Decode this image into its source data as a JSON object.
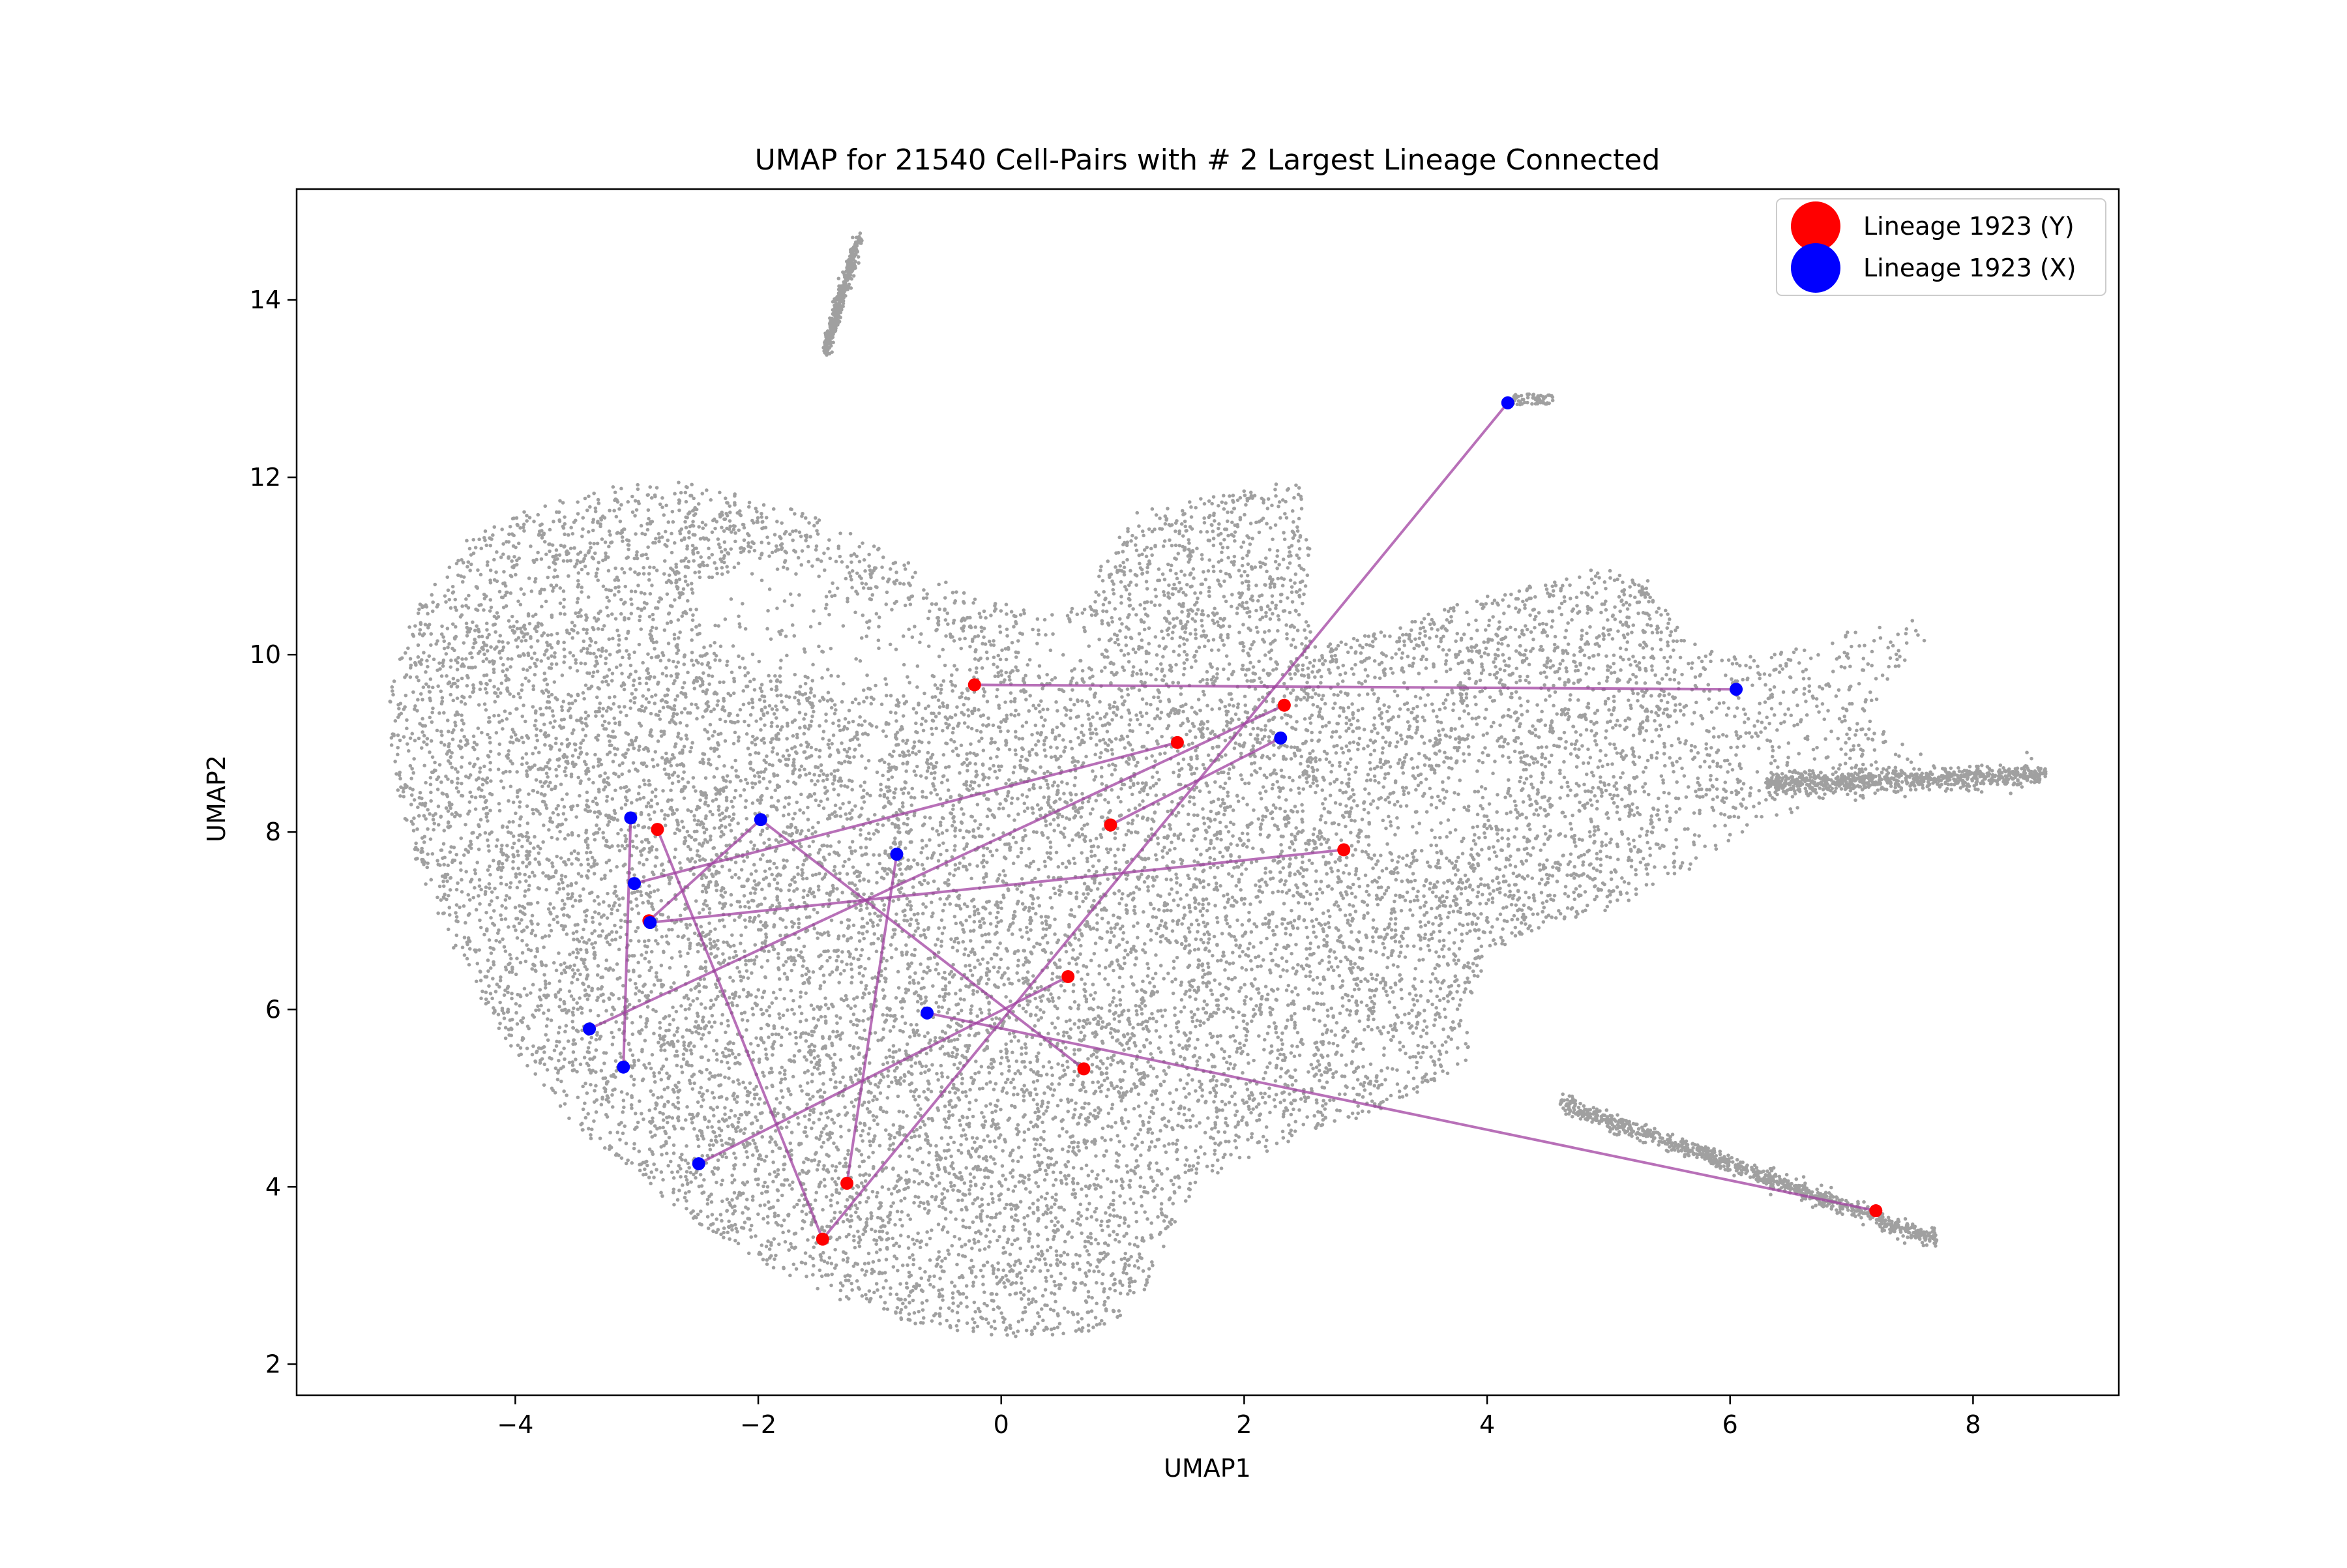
{
  "chart_data": {
    "type": "scatter",
    "title": "UMAP for 21540 Cell-Pairs with # 2 Largest Lineage Connected",
    "xlabel": "UMAP1",
    "ylabel": "UMAP2",
    "xlim": [
      -5.8,
      9.2
    ],
    "ylim": [
      1.65,
      15.25
    ],
    "xticks": [
      -4,
      -2,
      0,
      2,
      4,
      6,
      8
    ],
    "yticks": [
      2,
      4,
      6,
      8,
      10,
      12,
      14
    ],
    "xtick_labels": [
      "−4",
      "−2",
      "0",
      "2",
      "4",
      "6",
      "8"
    ],
    "ytick_labels": [
      "2",
      "4",
      "6",
      "8",
      "10",
      "12",
      "14"
    ],
    "grid": false,
    "legend_position": "top-right",
    "background_points": {
      "count": 21540,
      "color": "#808080",
      "description_regions": [
        {
          "shape": "main-body",
          "x_range": [
            -5.1,
            3.9
          ],
          "y_range": [
            2.3,
            12.0
          ]
        },
        {
          "shape": "upper-right-arm",
          "x_range": [
            2.5,
            7.9
          ],
          "y_range": [
            7.5,
            10.5
          ]
        },
        {
          "shape": "right-tail",
          "x_range": [
            6.0,
            8.6
          ],
          "y_range": [
            8.5,
            8.7
          ]
        },
        {
          "shape": "lower-right-branch",
          "x_range": [
            4.6,
            7.7
          ],
          "y_range": [
            3.4,
            5.0
          ]
        },
        {
          "shape": "top-island",
          "x_range": [
            -1.45,
            -1.18
          ],
          "y_range": [
            13.4,
            14.7
          ]
        },
        {
          "shape": "top-right-island",
          "x_range": [
            4.2,
            4.5
          ],
          "y_range": [
            12.8,
            12.95
          ]
        }
      ]
    },
    "series": [
      {
        "name": "Lineage 1923 (Y)",
        "color": "#ff0000",
        "points": [
          {
            "x": -0.22,
            "y": 9.66
          },
          {
            "x": 2.33,
            "y": 9.43
          },
          {
            "x": 1.45,
            "y": 9.01
          },
          {
            "x": 0.9,
            "y": 8.08
          },
          {
            "x": -2.83,
            "y": 8.03
          },
          {
            "x": 2.82,
            "y": 7.8
          },
          {
            "x": -2.9,
            "y": 7.0
          },
          {
            "x": 0.55,
            "y": 6.37
          },
          {
            "x": 0.68,
            "y": 5.33
          },
          {
            "x": -1.27,
            "y": 4.04
          },
          {
            "x": -1.47,
            "y": 3.41
          },
          {
            "x": 7.2,
            "y": 3.73
          }
        ]
      },
      {
        "name": "Lineage 1923 (X)",
        "color": "#0000ff",
        "points": [
          {
            "x": 4.17,
            "y": 12.84
          },
          {
            "x": 6.05,
            "y": 9.61
          },
          {
            "x": 2.3,
            "y": 9.06
          },
          {
            "x": -3.05,
            "y": 8.16
          },
          {
            "x": -1.98,
            "y": 8.14
          },
          {
            "x": -0.86,
            "y": 7.75
          },
          {
            "x": -3.02,
            "y": 7.42
          },
          {
            "x": -2.89,
            "y": 6.98
          },
          {
            "x": -0.61,
            "y": 5.96
          },
          {
            "x": -3.39,
            "y": 5.78
          },
          {
            "x": -3.11,
            "y": 5.35
          },
          {
            "x": -2.49,
            "y": 4.26
          }
        ]
      }
    ],
    "connections": {
      "color": "#a040a0",
      "pairs": [
        {
          "from": [
            -0.22,
            9.66
          ],
          "to": [
            6.05,
            9.61
          ]
        },
        {
          "from": [
            2.33,
            9.43
          ],
          "to": [
            -3.39,
            5.78
          ]
        },
        {
          "from": [
            1.45,
            9.01
          ],
          "to": [
            -3.02,
            7.42
          ]
        },
        {
          "from": [
            0.9,
            8.08
          ],
          "to": [
            2.3,
            9.06
          ]
        },
        {
          "from": [
            -2.83,
            8.03
          ],
          "to": [
            -1.47,
            3.41
          ]
        },
        {
          "from": [
            2.82,
            7.8
          ],
          "to": [
            -2.89,
            6.98
          ]
        },
        {
          "from": [
            -2.9,
            7.0
          ],
          "to": [
            -1.98,
            8.14
          ]
        },
        {
          "from": [
            0.55,
            6.37
          ],
          "to": [
            -2.49,
            4.26
          ]
        },
        {
          "from": [
            0.68,
            5.33
          ],
          "to": [
            -1.98,
            8.14
          ]
        },
        {
          "from": [
            -1.27,
            4.04
          ],
          "to": [
            -0.86,
            7.75
          ]
        },
        {
          "from": [
            -1.47,
            3.41
          ],
          "to": [
            4.17,
            12.84
          ]
        },
        {
          "from": [
            7.2,
            3.73
          ],
          "to": [
            -0.61,
            5.96
          ]
        },
        {
          "from": [
            -3.05,
            8.16
          ],
          "to": [
            -3.11,
            5.35
          ]
        }
      ]
    }
  }
}
